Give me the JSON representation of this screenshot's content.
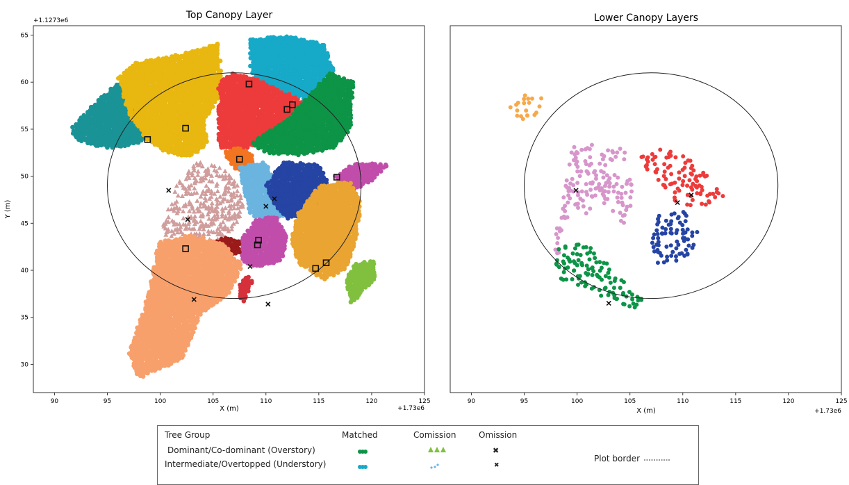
{
  "chart_data": [
    {
      "type": "scatter",
      "title": "Top Canopy Layer",
      "xlabel": "X (m)",
      "ylabel": "Y (m)",
      "x_offset_label": "+1.73e6",
      "y_offset_label": "+1.1273e6",
      "xlim": [
        88,
        125
      ],
      "ylim": [
        27,
        66
      ],
      "xticks": [
        "90",
        "95",
        "100",
        "105",
        "110",
        "115",
        "120",
        "125"
      ],
      "yticks": [
        "30",
        "35",
        "40",
        "45",
        "50",
        "55",
        "60",
        "65"
      ],
      "plot_border": {
        "center": [
          107,
          49
        ],
        "radius": 12
      },
      "series": [
        {
          "color": "#1a9396",
          "layer": "overstory",
          "polygon": [
            [
              91.5,
              55
            ],
            [
              94,
              58
            ],
            [
              96,
              60
            ],
            [
              97.5,
              59
            ],
            [
              98.5,
              56
            ],
            [
              99,
              54
            ],
            [
              97,
              53.2
            ],
            [
              95,
              53
            ],
            [
              93.5,
              53.3
            ],
            [
              92,
              54
            ]
          ]
        },
        {
          "color": "#e8b710",
          "layer": "overstory",
          "polygon": [
            [
              96,
              60.5
            ],
            [
              97.5,
              62
            ],
            [
              102,
              63
            ],
            [
              105.5,
              64.2
            ],
            [
              106,
              59
            ],
            [
              104.2,
              56
            ],
            [
              104.5,
              53.5
            ],
            [
              103,
              52
            ],
            [
              101,
              52.3
            ],
            [
              99,
              53.5
            ],
            [
              97,
              56.5
            ]
          ]
        },
        {
          "color": "#ed3b3b",
          "layer": "overstory",
          "polygon": [
            [
              105.5,
              60
            ],
            [
              107,
              61
            ],
            [
              109,
              60.5
            ],
            [
              112,
              59.3
            ],
            [
              113.5,
              58
            ],
            [
              110,
              54
            ],
            [
              107.5,
              52.5
            ],
            [
              105.5,
              53
            ]
          ]
        },
        {
          "color": "#16a9c8",
          "layer": "overstory",
          "polygon": [
            [
              108.5,
              64.5
            ],
            [
              112,
              65
            ],
            [
              115.5,
              64
            ],
            [
              116.5,
              61
            ],
            [
              114,
              58
            ],
            [
              111,
              59.5
            ],
            [
              108.5,
              61
            ]
          ]
        },
        {
          "color": "#0d9447",
          "layer": "overstory",
          "polygon": [
            [
              112,
              56
            ],
            [
              114,
              58.5
            ],
            [
              116,
              61
            ],
            [
              118.3,
              60
            ],
            [
              118,
              55
            ],
            [
              116.5,
              53
            ],
            [
              113,
              52.2
            ],
            [
              110,
              52.5
            ],
            [
              108.5,
              53.5
            ]
          ]
        },
        {
          "color": "#f37520",
          "layer": "overstory",
          "polygon": [
            [
              106,
              52.5
            ],
            [
              107.5,
              53.2
            ],
            [
              109,
              52
            ],
            [
              108,
              50.5
            ],
            [
              107,
              50.8
            ]
          ]
        },
        {
          "color": "#d09d9d",
          "layer": "overstory",
          "marker": "triangle",
          "polygon": [
            [
              100,
              44
            ],
            [
              101.5,
              49
            ],
            [
              103.5,
              51.5
            ],
            [
              106,
              51
            ],
            [
              107.5,
              49
            ],
            [
              108,
              46
            ],
            [
              106,
              43
            ],
            [
              103.5,
              43.2
            ],
            [
              101,
              43.5
            ]
          ]
        },
        {
          "color": "#6bb4e0",
          "layer": "overstory",
          "polygon": [
            [
              107.5,
              51
            ],
            [
              110,
              51.5
            ],
            [
              111.5,
              48.5
            ],
            [
              112,
              46
            ],
            [
              110,
              45
            ],
            [
              108.5,
              46
            ],
            [
              107.8,
              49
            ]
          ]
        },
        {
          "color": "#2544a4",
          "layer": "overstory",
          "polygon": [
            [
              110,
              49
            ],
            [
              111.5,
              51.5
            ],
            [
              115,
              51.3
            ],
            [
              116,
              49
            ],
            [
              114.5,
              46
            ],
            [
              112,
              45.5
            ],
            [
              111,
              46.5
            ]
          ]
        },
        {
          "color": "#c14dab",
          "layer": "overstory",
          "polygon": [
            [
              116.5,
              50
            ],
            [
              118.5,
              51.5
            ],
            [
              121.5,
              51.2
            ],
            [
              120,
              49.5
            ],
            [
              118,
              48.3
            ]
          ]
        },
        {
          "color": "#e9a432",
          "layer": "overstory",
          "polygon": [
            [
              113,
              46
            ],
            [
              115,
              49
            ],
            [
              118,
              49.5
            ],
            [
              119,
              47
            ],
            [
              118.5,
              43
            ],
            [
              117.5,
              40
            ],
            [
              115.5,
              39
            ],
            [
              113.2,
              40.5
            ],
            [
              112.3,
              43
            ]
          ]
        },
        {
          "color": "#c14dab",
          "layer": "overstory",
          "polygon": [
            [
              107.5,
              43
            ],
            [
              109,
              45.5
            ],
            [
              111,
              45.8
            ],
            [
              112,
              43.5
            ],
            [
              111.5,
              41
            ],
            [
              109,
              40.2
            ],
            [
              107.5,
              41.2
            ]
          ]
        },
        {
          "color": "#9b1a1a",
          "layer": "overstory",
          "polygon": [
            [
              104.5,
              42.6
            ],
            [
              106,
              43.5
            ],
            [
              107.5,
              43.1
            ],
            [
              107.5,
              41.8
            ],
            [
              106,
              41.2
            ],
            [
              104.8,
              41.7
            ]
          ]
        },
        {
          "color": "#f8a06c",
          "layer": "overstory",
          "polygon": [
            [
              99,
              38
            ],
            [
              99.8,
              43
            ],
            [
              103,
              43.8
            ],
            [
              106,
              42.8
            ],
            [
              107.8,
              40.5
            ],
            [
              106.5,
              37.5
            ],
            [
              104,
              35.5
            ],
            [
              102,
              30.5
            ],
            [
              98,
              28.5
            ],
            [
              97,
              31
            ]
          ]
        },
        {
          "color": "#80c03e",
          "layer": "overstory",
          "polygon": [
            [
              117.5,
              39
            ],
            [
              118.5,
              40.8
            ],
            [
              120.2,
              41
            ],
            [
              120.5,
              39.3
            ],
            [
              119,
              37.5
            ],
            [
              118,
              36.3
            ]
          ]
        },
        {
          "color": "#d6313b",
          "layer": "overstory",
          "polygon": [
            [
              107.5,
              38.5
            ],
            [
              108.6,
              39.8
            ],
            [
              108.7,
              38.7
            ],
            [
              108,
              36.5
            ],
            [
              107.3,
              37.4
            ]
          ]
        }
      ],
      "omissions": [
        [
          100.8,
          48.5
        ],
        [
          110,
          46.8
        ],
        [
          110.8,
          47.6
        ],
        [
          103.2,
          36.9
        ],
        [
          110.2,
          36.4
        ],
        [
          102.6,
          45.4
        ],
        [
          108.5,
          40.4
        ]
      ],
      "boxed_markers": [
        [
          98.8,
          53.9
        ],
        [
          102.4,
          55.1
        ],
        [
          108.4,
          59.8
        ],
        [
          112,
          57.1
        ],
        [
          112.5,
          57.6
        ],
        [
          107.5,
          51.8
        ],
        [
          116.7,
          49.9
        ],
        [
          109.2,
          42.7
        ],
        [
          109.3,
          43.2
        ],
        [
          102.4,
          42.3
        ],
        [
          115.7,
          40.8
        ],
        [
          114.7,
          40.2
        ]
      ]
    },
    {
      "type": "scatter",
      "title": "Lower Canopy Layers",
      "xlabel": "X (m)",
      "ylabel": "",
      "x_offset_label": "+1.73e6",
      "xlim": [
        88,
        125
      ],
      "ylim": [
        27,
        66
      ],
      "xticks": [
        "90",
        "95",
        "100",
        "105",
        "110",
        "115",
        "120",
        "125"
      ],
      "plot_border": {
        "center": [
          107,
          49
        ],
        "radius": 12
      },
      "series": [
        {
          "color": "#f7a94a",
          "layer": "understory",
          "polygon": [
            [
              93.3,
              57.5
            ],
            [
              95,
              58.8
            ],
            [
              97,
              58.3
            ],
            [
              96,
              56.2
            ],
            [
              94.3,
              55.8
            ]
          ]
        },
        {
          "color": "#d796cb",
          "layer": "understory",
          "polygon": [
            [
              99,
              51.5
            ],
            [
              99.7,
              53.2
            ],
            [
              103.5,
              53.5
            ],
            [
              105,
              52.2
            ],
            [
              103,
              50.4
            ],
            [
              105,
              49.8
            ],
            [
              105.6,
              47.5
            ],
            [
              104.8,
              44.8
            ],
            [
              103.5,
              45.5
            ],
            [
              102,
              47.5
            ],
            [
              100.8,
              45.5
            ],
            [
              99.5,
              47
            ],
            [
              99,
              44.5
            ],
            [
              98.5,
              42
            ],
            [
              97.7,
              41
            ],
            [
              98,
              44
            ],
            [
              98.6,
              47
            ]
          ]
        },
        {
          "color": "#ed3b3b",
          "layer": "understory",
          "polygon": [
            [
              106,
              52
            ],
            [
              108,
              53
            ],
            [
              110.5,
              52
            ],
            [
              112,
              50.5
            ],
            [
              114,
              48
            ],
            [
              113,
              47
            ],
            [
              111,
              46.8
            ],
            [
              109.5,
              47
            ],
            [
              108,
              49
            ],
            [
              106.5,
              50.5
            ]
          ]
        },
        {
          "color": "#2544a4",
          "layer": "understory",
          "polygon": [
            [
              107,
              43
            ],
            [
              107.7,
              45.8
            ],
            [
              111,
              46.5
            ],
            [
              111.6,
              43
            ],
            [
              110.2,
              40.8
            ],
            [
              107.5,
              40.8
            ]
          ]
        },
        {
          "color": "#0d9447",
          "layer": "understory",
          "polygon": [
            [
              97.8,
              40.5
            ],
            [
              98.3,
              42.5
            ],
            [
              101,
              43
            ],
            [
              102.3,
              41.3
            ],
            [
              104.5,
              38.8
            ],
            [
              106.4,
              36.8
            ],
            [
              106.2,
              35.8
            ],
            [
              105.2,
              35.4
            ],
            [
              103.5,
              36.6
            ],
            [
              101.8,
              37.2
            ],
            [
              100,
              38.2
            ],
            [
              98.5,
              39
            ]
          ]
        }
      ],
      "omissions": [
        [
          99.9,
          48.5
        ],
        [
          109.5,
          47.2
        ],
        [
          110.8,
          48
        ],
        [
          103,
          36.5
        ]
      ]
    }
  ],
  "legend": {
    "header": {
      "group": "Tree Group",
      "matched": "Matched",
      "comission": "Comission",
      "omission": "Omission"
    },
    "rows": [
      {
        "label": "Dominant/Co-dominant (Overstory)",
        "matched_color": "#0d9447",
        "comission_color": "#80c03e",
        "omission_symbol": "✖"
      },
      {
        "label": "Intermediate/Overtopped (Understory)",
        "matched_color": "#16a9c8",
        "comission_color": "#6bb4e0",
        "omission_symbol": "✖"
      }
    ],
    "plot_border_label": "Plot border"
  }
}
